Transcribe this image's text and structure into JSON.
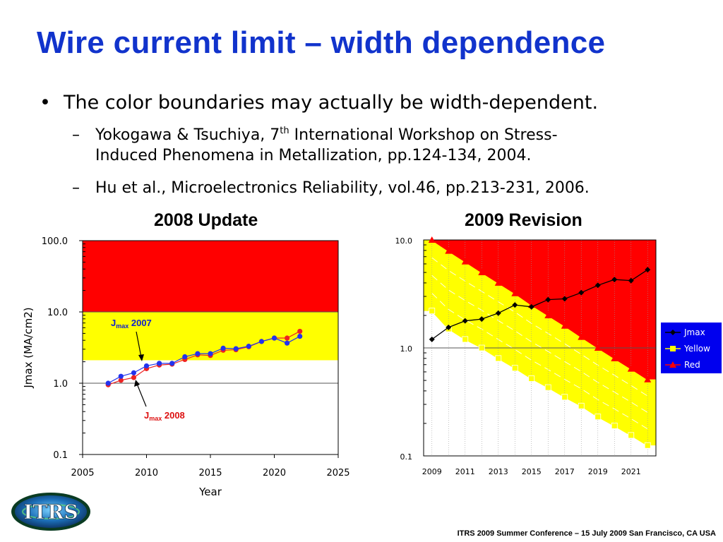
{
  "slide": {
    "title": "Wire current limit – width dependence",
    "bullet_main": "The color boundaries may actually be width-dependent.",
    "bullet_char": "•",
    "dash_char": "–",
    "sub1_pre": "Yokogawa & Tsuchiya, 7",
    "sub1_sup": "th",
    "sub1_post": " International Workshop on Stress-",
    "sub1_line2": "Induced Phenomena in Metallization, pp.124-134, 2004.",
    "sub2": "Hu et al., Microelectronics Reliability, vol.46, pp.213-231, 2006.",
    "footer": "ITRS 2009 Summer Conference – 15 July 2009 San Francisco, CA USA",
    "logo_text": "ITRS"
  },
  "chart_data": [
    {
      "type": "line",
      "title": "2008 Update",
      "xlabel": "Year",
      "ylabel": "Jmax (MA/cm2)",
      "yscale": "log",
      "xlim": [
        2005,
        2025
      ],
      "ylim": [
        0.1,
        100
      ],
      "x_ticks": [
        "2005",
        "2010",
        "2015",
        "2020",
        "2025"
      ],
      "y_ticks": [
        "100.0",
        "10.0",
        "1.0",
        "0.1"
      ],
      "bands": [
        {
          "color": "#ff0000",
          "from": 10,
          "to": 100
        },
        {
          "color": "#ffff00",
          "from": 2.1,
          "to": 10
        }
      ],
      "x": [
        2007,
        2008,
        2009,
        2010,
        2011,
        2012,
        2013,
        2014,
        2015,
        2016,
        2017,
        2018,
        2019,
        2020,
        2021,
        2022
      ],
      "series": [
        {
          "name": "2007",
          "color": "#2233ee",
          "values": [
            1.0,
            1.25,
            1.4,
            1.75,
            1.9,
            1.9,
            2.35,
            2.6,
            2.6,
            3.1,
            3.05,
            3.3,
            3.85,
            4.3,
            3.65,
            4.55
          ]
        },
        {
          "name": "2008",
          "color": "#ee2222",
          "values": [
            0.95,
            1.1,
            1.2,
            1.6,
            1.8,
            1.85,
            2.15,
            2.5,
            2.45,
            2.9,
            2.95,
            3.25,
            3.85,
            4.3,
            4.3,
            5.35
          ]
        }
      ],
      "annotations": [
        {
          "sub": "max",
          "text": "2007",
          "color": "#1122cc"
        },
        {
          "sub": "max",
          "text": "2008",
          "color": "#dd1111"
        }
      ],
      "annotation_letter": "J"
    },
    {
      "type": "line",
      "title": "2009 Revision",
      "yscale": "log",
      "xlim": [
        2008.5,
        2022.5
      ],
      "ylim": [
        0.1,
        10
      ],
      "x_ticks": [
        "2009",
        "2011",
        "2013",
        "2015",
        "2017",
        "2019",
        "2021"
      ],
      "y_ticks": [
        "10.0",
        "1.0",
        "0.1"
      ],
      "x": [
        2009,
        2010,
        2011,
        2012,
        2013,
        2014,
        2015,
        2016,
        2017,
        2018,
        2019,
        2020,
        2021,
        2022
      ],
      "series": [
        {
          "name": "Jmax",
          "color": "#000000",
          "marker": "diamond",
          "values": [
            1.2,
            1.55,
            1.78,
            1.85,
            2.1,
            2.5,
            2.4,
            2.8,
            2.85,
            3.25,
            3.8,
            4.3,
            4.2,
            5.3
          ]
        },
        {
          "name": "Yellow",
          "color": "#ffff00",
          "marker": "square",
          "values": [
            2.2,
            1.5,
            1.2,
            1.0,
            0.8,
            0.65,
            0.52,
            0.43,
            0.35,
            0.29,
            0.23,
            0.19,
            0.155,
            0.125
          ]
        },
        {
          "name": "Red",
          "color": "#ff0000",
          "marker": "triangle",
          "values": [
            10.0,
            7.9,
            6.3,
            5.0,
            4.0,
            3.2,
            2.5,
            2.0,
            1.6,
            1.26,
            1.0,
            0.8,
            0.64,
            0.51
          ]
        }
      ],
      "legend_position": "right"
    }
  ]
}
